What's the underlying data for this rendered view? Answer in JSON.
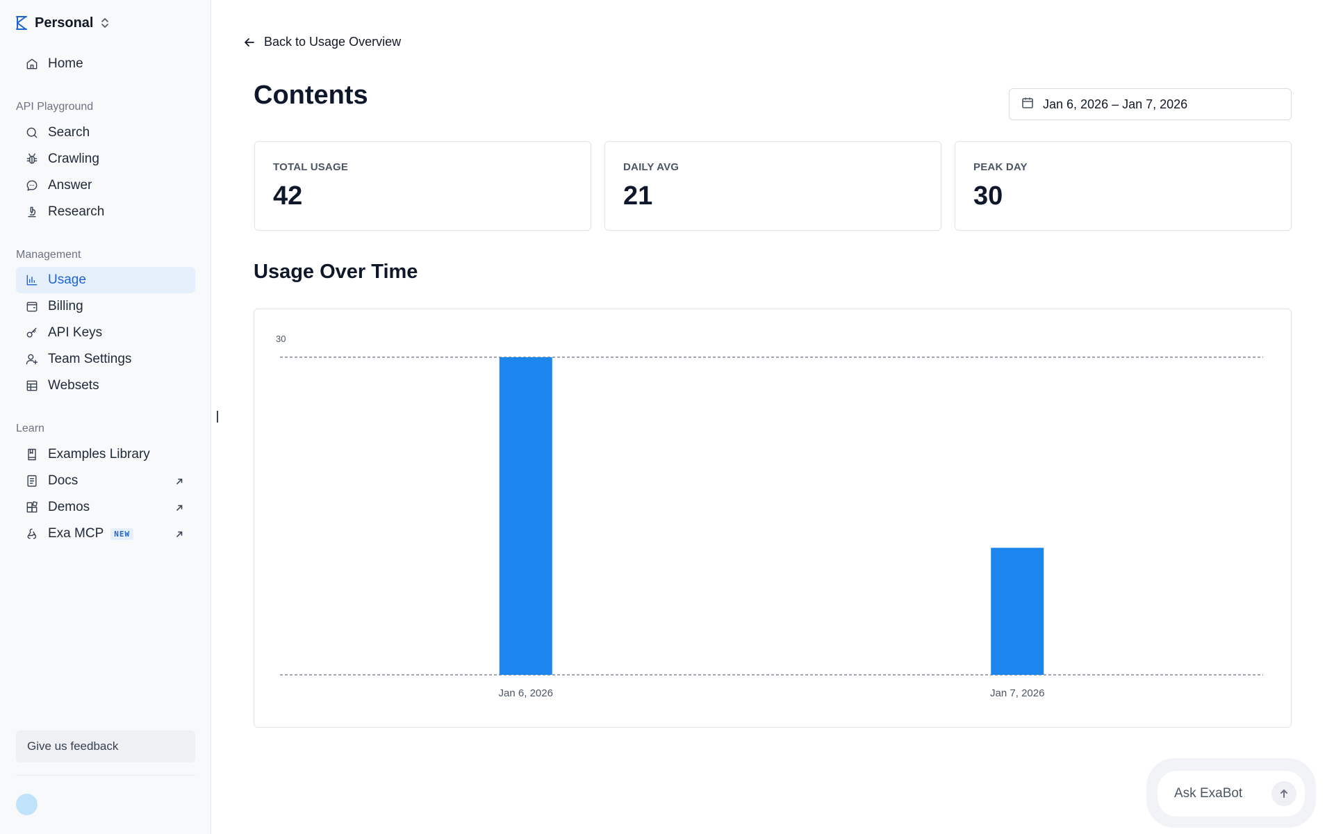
{
  "workspace": {
    "name": "Personal",
    "logo_icon": "exa-logo-icon",
    "switcher_icon": "chevron-up-down-icon"
  },
  "sidebar": {
    "items_top": [
      {
        "label": "Home",
        "icon": "home-icon"
      }
    ],
    "sections": [
      {
        "title": "API Playground",
        "items": [
          {
            "label": "Search",
            "icon": "search-icon"
          },
          {
            "label": "Crawling",
            "icon": "bug-icon"
          },
          {
            "label": "Answer",
            "icon": "chat-bubble-icon"
          },
          {
            "label": "Research",
            "icon": "microscope-icon"
          }
        ]
      },
      {
        "title": "Management",
        "items": [
          {
            "label": "Usage",
            "icon": "bar-chart-icon",
            "active": true
          },
          {
            "label": "Billing",
            "icon": "wallet-icon"
          },
          {
            "label": "API Keys",
            "icon": "key-icon"
          },
          {
            "label": "Team Settings",
            "icon": "user-plus-icon"
          },
          {
            "label": "Websets",
            "icon": "table-icon"
          }
        ]
      },
      {
        "title": "Learn",
        "items": [
          {
            "label": "Examples Library",
            "icon": "book-icon"
          },
          {
            "label": "Docs",
            "icon": "document-icon",
            "external": true
          },
          {
            "label": "Demos",
            "icon": "blocks-icon",
            "external": true
          },
          {
            "label": "Exa MCP",
            "icon": "webhook-icon",
            "external": true,
            "badge": "NEW"
          }
        ]
      }
    ],
    "feedback_label": "Give us feedback"
  },
  "main": {
    "back_label": "Back to Usage Overview",
    "title": "Contents",
    "date_range": "Jan 6, 2026 – Jan 7, 2026",
    "stats": [
      {
        "label": "TOTAL USAGE",
        "value": "42"
      },
      {
        "label": "DAILY AVG",
        "value": "21"
      },
      {
        "label": "PEAK DAY",
        "value": "30"
      }
    ],
    "chart_section_title": "Usage Over Time"
  },
  "chart_data": {
    "type": "bar",
    "title": "Usage Over Time",
    "categories": [
      "Jan 6, 2026",
      "Jan 7, 2026"
    ],
    "values": [
      30,
      12
    ],
    "ylim": [
      0,
      30
    ],
    "y_ticks": [
      30
    ],
    "xlabel": "",
    "ylabel": "",
    "grid": "dashed horizontal lines at 0 and 30",
    "bar_color": "#1c85ee"
  },
  "exabot": {
    "placeholder": "Ask ExaBot",
    "send_icon": "arrow-up-icon"
  },
  "colors": {
    "accent": "#1d63d1",
    "active_bg": "#e6f0fd",
    "bar": "#1c85ee"
  }
}
